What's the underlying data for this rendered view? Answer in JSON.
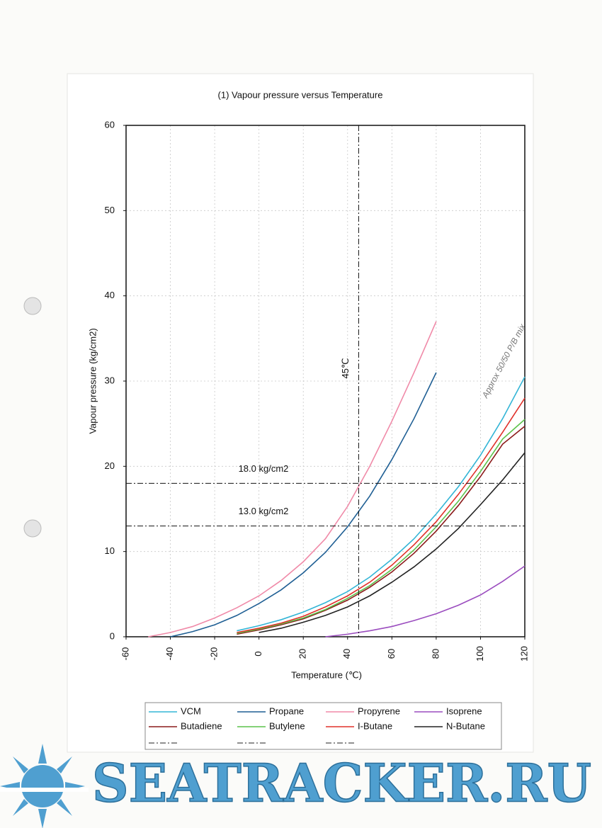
{
  "chart_data": {
    "type": "line",
    "title": "(1) Vapour pressure versus Temperature",
    "xlabel": "Temperature (℃)",
    "ylabel": "Vapour pressure (kg/cm2)",
    "x": [
      -60,
      -50,
      -40,
      -30,
      -20,
      -10,
      0,
      10,
      20,
      30,
      40,
      50,
      60,
      70,
      80,
      90,
      100,
      110,
      120
    ],
    "series": [
      {
        "name": "VCM",
        "color": "#33b5d6",
        "values": [
          null,
          null,
          null,
          null,
          null,
          0.7,
          1.3,
          2,
          2.9,
          4,
          5.3,
          7,
          9.1,
          11.5,
          14.4,
          17.6,
          21.3,
          25.6,
          30.5
        ]
      },
      {
        "name": "Propane",
        "color": "#1f5f94",
        "values": [
          null,
          null,
          0,
          0.6,
          1.4,
          2.5,
          3.9,
          5.5,
          7.5,
          9.9,
          12.9,
          16.5,
          20.8,
          25.6,
          31,
          null,
          null,
          null,
          null
        ]
      },
      {
        "name": "Propyrene",
        "color": "#f08aa8",
        "values": [
          null,
          0,
          0.5,
          1.2,
          2.2,
          3.4,
          4.8,
          6.6,
          8.8,
          11.5,
          15.3,
          20,
          25.3,
          31,
          37,
          null,
          null,
          null,
          null
        ]
      },
      {
        "name": "Isoprene",
        "color": "#9b4dbf",
        "values": [
          null,
          null,
          null,
          null,
          null,
          null,
          null,
          null,
          null,
          0,
          0.3,
          0.7,
          1.2,
          1.9,
          2.7,
          3.7,
          4.9,
          6.5,
          8.3
        ]
      },
      {
        "name": "Butadiene",
        "color": "#8b1a1a",
        "values": [
          null,
          null,
          null,
          null,
          null,
          0.3,
          0.8,
          1.4,
          2.1,
          3.1,
          4.3,
          5.8,
          7.6,
          9.8,
          12.4,
          15.4,
          18.8,
          22.6,
          24.7
        ]
      },
      {
        "name": "Butylene",
        "color": "#5cc24a",
        "values": [
          null,
          null,
          null,
          null,
          null,
          0.4,
          0.9,
          1.5,
          2.2,
          3.2,
          4.5,
          6,
          7.9,
          10.2,
          12.9,
          15.9,
          19.4,
          23.2,
          25.5
        ]
      },
      {
        "name": "I-Butane",
        "color": "#e0302a",
        "values": [
          null,
          null,
          null,
          null,
          null,
          0.5,
          1,
          1.6,
          2.4,
          3.5,
          4.8,
          6.4,
          8.4,
          10.8,
          13.5,
          16.7,
          20.2,
          24,
          28
        ]
      },
      {
        "name": "N-Butane",
        "color": "#222222",
        "values": [
          null,
          null,
          null,
          null,
          null,
          null,
          0.5,
          1,
          1.7,
          2.5,
          3.5,
          4.8,
          6.4,
          8.2,
          10.3,
          12.7,
          15.5,
          18.4,
          21.6
        ]
      }
    ],
    "reference_lines": [
      {
        "axis": "x",
        "value": 45,
        "label": "45℃"
      },
      {
        "axis": "y",
        "value": 18,
        "label": "18.0 kg/cm2"
      },
      {
        "axis": "y",
        "value": 13,
        "label": "13.0 kg/cm2"
      }
    ],
    "annotation": "Approx 50/50 P/B mix",
    "xlim": [
      -60,
      120
    ],
    "xticks": [
      -60,
      -40,
      -20,
      0,
      20,
      40,
      60,
      80,
      100,
      120
    ],
    "ylim": [
      0,
      60
    ],
    "yticks": [
      0,
      10,
      20,
      30,
      40,
      50,
      60
    ],
    "grid": true,
    "legend": "bottom",
    "watermark": "SEATRACKER.RU"
  }
}
